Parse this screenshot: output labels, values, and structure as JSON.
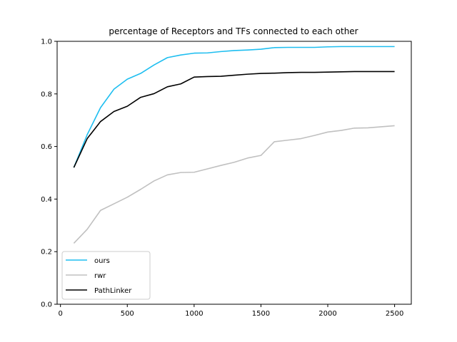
{
  "chart_data": {
    "type": "line",
    "title": "percentage of Receptors and TFs connected to each other",
    "xlabel": "",
    "ylabel": "",
    "xlim": [
      -25,
      2625
    ],
    "ylim": [
      0.0,
      1.0
    ],
    "xticks": [
      0,
      500,
      1000,
      1500,
      2000,
      2500
    ],
    "yticks": [
      0.0,
      0.2,
      0.4,
      0.6,
      0.8,
      1.0
    ],
    "xtick_labels": [
      "0",
      "500",
      "1000",
      "1500",
      "2000",
      "2500"
    ],
    "ytick_labels": [
      "0.0",
      "0.2",
      "0.4",
      "0.6",
      "0.8",
      "1.0"
    ],
    "grid": false,
    "legend": "lower-left",
    "x": [
      100,
      200,
      300,
      400,
      500,
      600,
      700,
      800,
      900,
      1000,
      1100,
      1200,
      1300,
      1400,
      1500,
      1600,
      1700,
      1800,
      1900,
      2000,
      2100,
      2200,
      2300,
      2400,
      2500
    ],
    "series": [
      {
        "name": "ours",
        "color": "#1ebef0",
        "values": [
          0.52,
          0.645,
          0.748,
          0.818,
          0.856,
          0.878,
          0.91,
          0.938,
          0.948,
          0.955,
          0.956,
          0.961,
          0.965,
          0.967,
          0.97,
          0.976,
          0.977,
          0.977,
          0.977,
          0.979,
          0.98,
          0.98,
          0.98,
          0.98,
          0.98
        ]
      },
      {
        "name": "rwr",
        "color": "#c0c0c0",
        "values": [
          0.232,
          0.285,
          0.357,
          0.382,
          0.407,
          0.437,
          0.469,
          0.492,
          0.501,
          0.502,
          0.515,
          0.528,
          0.54,
          0.556,
          0.566,
          0.618,
          0.624,
          0.63,
          0.642,
          0.655,
          0.661,
          0.67,
          0.671,
          0.675,
          0.679
        ]
      },
      {
        "name": "PathLinker",
        "color": "#000000",
        "values": [
          0.52,
          0.63,
          0.695,
          0.733,
          0.753,
          0.787,
          0.801,
          0.827,
          0.838,
          0.864,
          0.866,
          0.867,
          0.871,
          0.875,
          0.878,
          0.879,
          0.881,
          0.882,
          0.882,
          0.883,
          0.884,
          0.885,
          0.885,
          0.885,
          0.885
        ]
      }
    ]
  }
}
